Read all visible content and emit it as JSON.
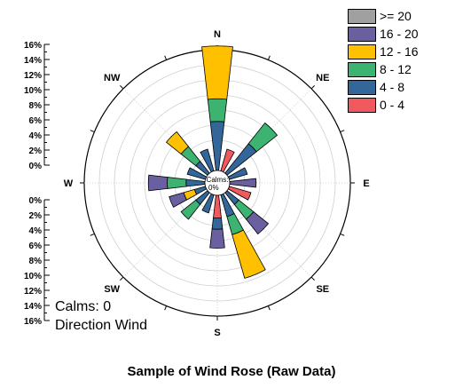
{
  "chart_data": {
    "type": "windrose",
    "title": "Sample of Wind Rose (Raw Data)",
    "directions": [
      "N",
      "NNE",
      "NE",
      "ENE",
      "E",
      "ESE",
      "SE",
      "SSE",
      "S",
      "SSW",
      "SW",
      "WSW",
      "W",
      "WNW",
      "NW",
      "NNW"
    ],
    "compass_labels": [
      "N",
      "NE",
      "E",
      "SE",
      "S",
      "SW",
      "W",
      "NW"
    ],
    "radial_max": 16,
    "radial_step": 2,
    "radial_ticks": [
      "0%",
      "2%",
      "4%",
      "6%",
      "8%",
      "10%",
      "12%",
      "14%",
      "16%"
    ],
    "calms_center_label": "Calms:",
    "calms_center_value": "0%",
    "bins": [
      {
        "label": "0 - 4",
        "color": "#f05a5e"
      },
      {
        "label": "4 - 8",
        "color": "#336699"
      },
      {
        "label": "8 - 12",
        "color": "#3cb371"
      },
      {
        "label": "12 - 16",
        "color": "#ffc000"
      },
      {
        "label": "16 - 20",
        "color": "#6a60a0"
      },
      {
        "label": ">= 20",
        "color": "#a0a0a0"
      }
    ],
    "legend_order": [
      ">= 20",
      "16 - 20",
      "12 - 16",
      "8 - 12",
      "4 - 8",
      "0 - 4"
    ],
    "series": [
      {
        "direction": "N",
        "values": [
          0,
          6.5,
          3,
          7,
          0,
          0
        ]
      },
      {
        "direction": "NNE",
        "values": [
          3.0,
          0,
          0,
          0,
          0,
          0
        ]
      },
      {
        "direction": "NE",
        "values": [
          0,
          5,
          3.5,
          0,
          0,
          0
        ]
      },
      {
        "direction": "ENE",
        "values": [
          0,
          2.5,
          0,
          0,
          0,
          0
        ]
      },
      {
        "direction": "E",
        "values": [
          0,
          0,
          0,
          0,
          3.5,
          0
        ]
      },
      {
        "direction": "ESE",
        "values": [
          3.0,
          0,
          0,
          0,
          0,
          0
        ]
      },
      {
        "direction": "SE",
        "values": [
          0,
          2,
          2.5,
          0,
          2.5,
          0
        ]
      },
      {
        "direction": "SSE",
        "values": [
          0,
          3,
          2.5,
          6,
          0,
          0
        ]
      },
      {
        "direction": "S",
        "values": [
          3.0,
          1.5,
          0,
          0,
          2.5,
          0
        ]
      },
      {
        "direction": "SSW",
        "values": [
          0,
          2.5,
          0,
          0,
          0,
          0
        ]
      },
      {
        "direction": "SW",
        "values": [
          0,
          2,
          2.5,
          0,
          0,
          0
        ]
      },
      {
        "direction": "WSW",
        "values": [
          0,
          1.5,
          0,
          1.5,
          2.0,
          0
        ]
      },
      {
        "direction": "W",
        "values": [
          0,
          2.5,
          2.5,
          0,
          2.5,
          0
        ]
      },
      {
        "direction": "WNW",
        "values": [
          0,
          2.5,
          0,
          0,
          0,
          0
        ]
      },
      {
        "direction": "NW",
        "values": [
          0,
          2,
          2.5,
          2.5,
          0,
          0
        ]
      },
      {
        "direction": "NNW",
        "values": [
          0,
          3,
          0,
          0,
          0,
          0
        ]
      }
    ]
  },
  "info": {
    "calms": "Calms: 0",
    "direction_label": "Direction Wind"
  }
}
